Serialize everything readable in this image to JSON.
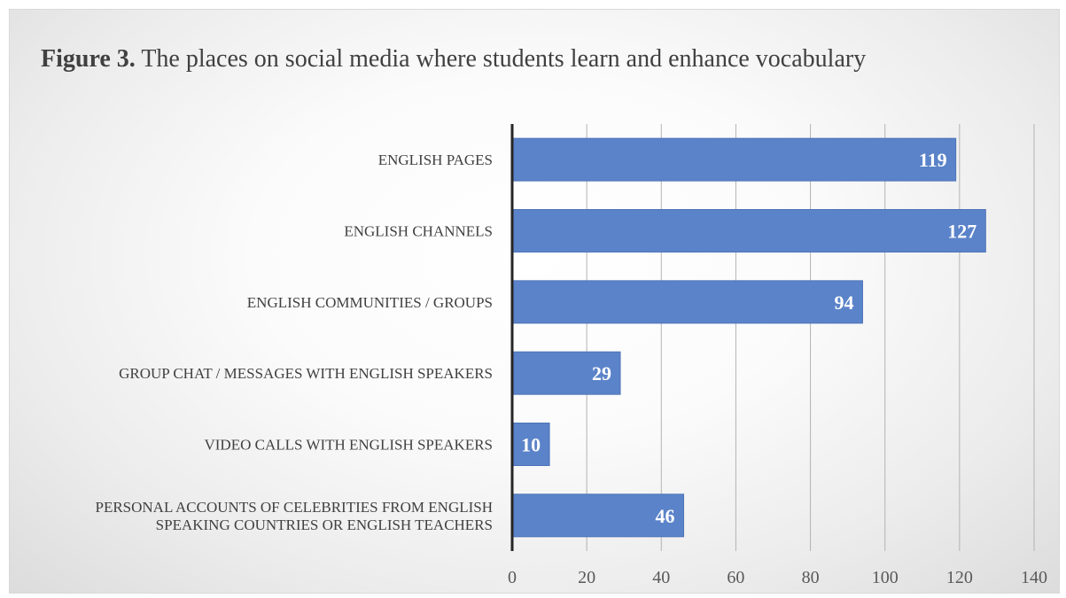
{
  "chart_data": {
    "type": "bar",
    "orientation": "horizontal",
    "title_prefix": "Figure 3.",
    "title": "The places on social media where students learn and enhance vocabulary",
    "categories": [
      [
        "ENGLISH PAGES"
      ],
      [
        "ENGLISH CHANNELS"
      ],
      [
        "ENGLISH COMMUNITIES / GROUPS"
      ],
      [
        "GROUP CHAT / MESSAGES WITH ENGLISH SPEAKERS"
      ],
      [
        "VIDEO CALLS WITH ENGLISH SPEAKERS"
      ],
      [
        "PERSONAL ACCOUNTS OF CELEBRITIES FROM ENGLISH",
        "SPEAKING COUNTRIES OR ENGLISH TEACHERS"
      ]
    ],
    "values": [
      119,
      127,
      94,
      29,
      10,
      46
    ],
    "xlim": [
      0,
      140
    ],
    "xticks": [
      "0",
      "20",
      "40",
      "60",
      "80",
      "100",
      "120",
      "140"
    ],
    "xlabel": "",
    "ylabel": "",
    "grid": true,
    "data_labels": true,
    "bar_color": "#5b83c9",
    "bar_edge_color": "#4d74b8"
  }
}
